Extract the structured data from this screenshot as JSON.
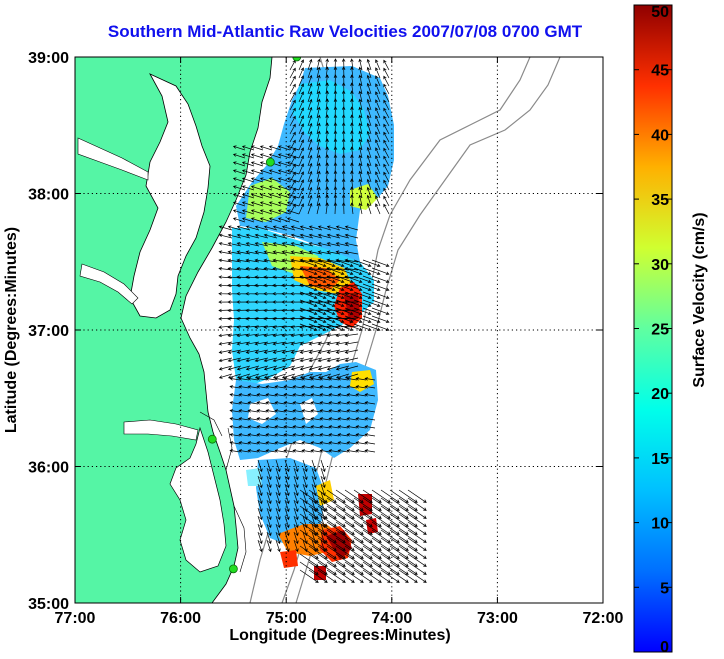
{
  "title": "Southern Mid-Atlantic Raw Velocities 2007/07/08 0700 GMT",
  "map": {
    "xlabel": "Longitude (Degrees:Minutes)",
    "ylabel": "Latitude (Degrees:Minutes)",
    "x_ticks": [
      "77:00",
      "76:00",
      "75:00",
      "74:00",
      "73:00",
      "72:00"
    ],
    "y_ticks": [
      "39:00",
      "38:00",
      "37:00",
      "36:00",
      "35:00"
    ],
    "lon_range": [
      -77,
      -72
    ],
    "lat_range": [
      35,
      39
    ],
    "grid": true,
    "land_color": "#55f5a5",
    "coastline_color": "#000000",
    "station_color": "#22dd22"
  },
  "colorbar": {
    "label": "Surface Velocity (cm/s)",
    "ticks": [
      "0",
      "5",
      "10",
      "15",
      "20",
      "25",
      "30",
      "35",
      "40",
      "45",
      "50"
    ],
    "range": [
      0,
      50
    ],
    "colormap": "jet"
  },
  "stations": [
    {
      "lon": -74.9,
      "lat": 39.0
    },
    {
      "lon": -75.15,
      "lat": 38.23
    },
    {
      "lon": -75.7,
      "lat": 36.2
    },
    {
      "lon": -75.5,
      "lat": 35.25
    }
  ]
}
